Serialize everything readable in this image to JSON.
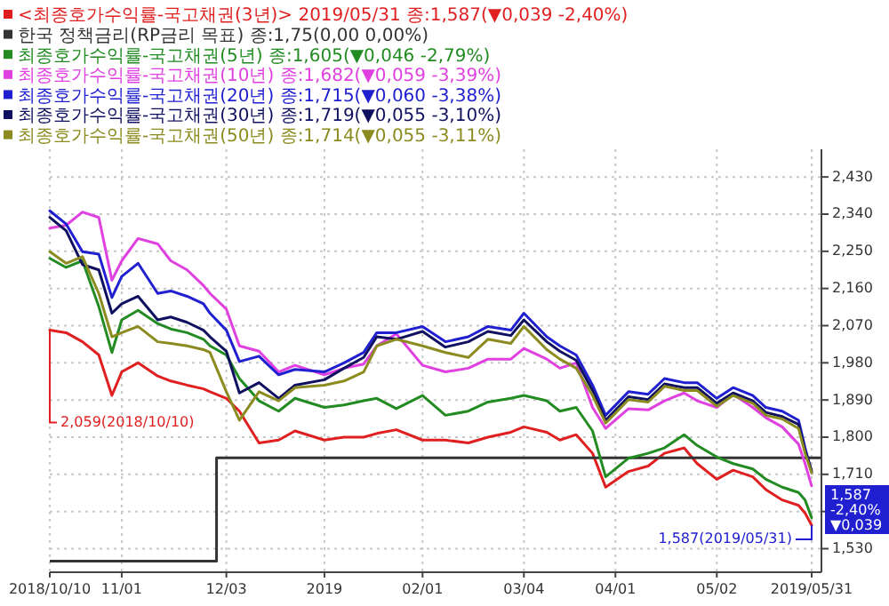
{
  "chart_data": {
    "type": "line",
    "x": [
      "2018-10-10",
      "2018-10-15",
      "2018-10-20",
      "2018-10-25",
      "2018-10-29",
      "2018-11-01",
      "2018-11-06",
      "2018-11-12",
      "2018-11-16",
      "2018-11-21",
      "2018-11-26",
      "2018-11-28",
      "2018-12-03",
      "2018-12-07",
      "2018-12-13",
      "2018-12-19",
      "2018-12-24",
      "2019-01-02",
      "2019-01-08",
      "2019-01-14",
      "2019-01-18",
      "2019-01-24",
      "2019-02-01",
      "2019-02-08",
      "2019-02-15",
      "2019-02-21",
      "2019-02-28",
      "2019-03-04",
      "2019-03-11",
      "2019-03-15",
      "2019-03-20",
      "2019-03-25",
      "2019-03-29",
      "2019-04-05",
      "2019-04-11",
      "2019-04-16",
      "2019-04-22",
      "2019-04-26",
      "2019-05-02",
      "2019-05-07",
      "2019-05-13",
      "2019-05-17",
      "2019-05-22",
      "2019-05-27",
      "2019-05-29",
      "2019-05-31"
    ],
    "series": [
      {
        "name": "<최종호가수익률-국고채권(3년)> 2019/05/31 종:1,587(▼0,039 -2,40%)",
        "color": "#e02020",
        "values": [
          2.059,
          2.053,
          2.031,
          1.999,
          1.901,
          1.958,
          1.98,
          1.948,
          1.936,
          1.926,
          1.917,
          1.91,
          1.894,
          1.863,
          1.786,
          1.793,
          1.815,
          1.793,
          1.8,
          1.8,
          1.809,
          1.818,
          1.793,
          1.793,
          1.786,
          1.8,
          1.812,
          1.825,
          1.812,
          1.793,
          1.806,
          1.761,
          1.679,
          1.717,
          1.73,
          1.761,
          1.774,
          1.736,
          1.698,
          1.72,
          1.704,
          1.673,
          1.648,
          1.635,
          1.616,
          1.587
        ]
      },
      {
        "name": "한국 정책금리(RP금리 목표) 종:1,75(0,00 0,00%)",
        "color": "#333333",
        "type": "step",
        "x": [
          "2018-10-10",
          "2018-11-30",
          "2019-06-03"
        ],
        "values": [
          1.5,
          1.75,
          1.75
        ]
      },
      {
        "name": "최종호가수익률-국고채권(5년) 종:1,605(▼0,046 -2,79%)",
        "color": "#228b22",
        "values": [
          2.233,
          2.211,
          2.227,
          2.116,
          2.005,
          2.084,
          2.107,
          2.075,
          2.062,
          2.053,
          2.037,
          2.021,
          1.999,
          1.942,
          1.888,
          1.863,
          1.894,
          1.872,
          1.878,
          1.888,
          1.894,
          1.869,
          1.901,
          1.853,
          1.863,
          1.885,
          1.894,
          1.901,
          1.888,
          1.863,
          1.872,
          1.815,
          1.704,
          1.749,
          1.761,
          1.774,
          1.806,
          1.78,
          1.752,
          1.736,
          1.723,
          1.698,
          1.679,
          1.666,
          1.648,
          1.605
        ]
      },
      {
        "name": "최종호가수익률-국고채권(10년) 종:1,682(▼0,059 -3,39%)",
        "color": "#e040e0",
        "values": [
          2.306,
          2.313,
          2.345,
          2.332,
          2.18,
          2.227,
          2.281,
          2.268,
          2.227,
          2.205,
          2.167,
          2.148,
          2.11,
          2.021,
          2.008,
          1.958,
          1.974,
          1.951,
          1.967,
          1.977,
          2.021,
          2.05,
          1.974,
          1.958,
          1.967,
          1.989,
          1.989,
          2.015,
          1.989,
          1.967,
          1.98,
          1.872,
          1.821,
          1.869,
          1.866,
          1.888,
          1.907,
          1.888,
          1.872,
          1.904,
          1.872,
          1.847,
          1.825,
          1.783,
          1.736,
          1.682
        ]
      },
      {
        "name": "최종호가수익률-국고채권(20년) 종:1,715(▼0,060 -3,38%)",
        "color": "#2020d0",
        "values": [
          2.348,
          2.316,
          2.249,
          2.243,
          2.138,
          2.189,
          2.221,
          2.148,
          2.154,
          2.141,
          2.123,
          2.1,
          2.059,
          1.983,
          1.996,
          1.951,
          1.964,
          1.958,
          1.98,
          2.005,
          2.053,
          2.053,
          2.068,
          2.031,
          2.043,
          2.068,
          2.059,
          2.1,
          2.043,
          2.021,
          1.999,
          1.926,
          1.853,
          1.91,
          1.904,
          1.942,
          1.932,
          1.932,
          1.894,
          1.92,
          1.901,
          1.872,
          1.863,
          1.841,
          1.774,
          1.715
        ]
      },
      {
        "name": "최종호가수익률-국고채권(30년) 종:1,719(▼0,055 -3,10%)",
        "color": "#101060",
        "values": [
          2.332,
          2.3,
          2.218,
          2.205,
          2.1,
          2.123,
          2.141,
          2.084,
          2.091,
          2.078,
          2.059,
          2.043,
          2.008,
          1.907,
          1.932,
          1.894,
          1.926,
          1.939,
          1.967,
          1.993,
          2.043,
          2.037,
          2.056,
          2.018,
          2.031,
          2.056,
          2.046,
          2.084,
          2.031,
          2.008,
          1.986,
          1.913,
          1.841,
          1.898,
          1.891,
          1.929,
          1.92,
          1.92,
          1.882,
          1.907,
          1.888,
          1.86,
          1.85,
          1.831,
          1.768,
          1.719
        ]
      },
      {
        "name": "최종호가수익률-국고채권(50년) 종:1,714(▼0,055 -3,11%)",
        "color": "#8b8b20",
        "values": [
          2.249,
          2.221,
          2.237,
          2.148,
          2.043,
          2.053,
          2.068,
          2.031,
          2.027,
          2.021,
          2.012,
          2.005,
          1.91,
          1.841,
          1.91,
          1.888,
          1.92,
          1.926,
          1.936,
          1.958,
          2.021,
          2.037,
          2.021,
          2.005,
          1.993,
          2.037,
          2.027,
          2.068,
          2.012,
          1.989,
          1.967,
          1.901,
          1.834,
          1.891,
          1.885,
          1.923,
          1.913,
          1.913,
          1.875,
          1.901,
          1.882,
          1.853,
          1.844,
          1.821,
          1.761,
          1.714
        ]
      }
    ],
    "xlim": [
      "2018-10-10",
      "2019-06-03"
    ],
    "ylim": [
      1.473,
      2.497
    ],
    "xticks": [
      {
        "value": "2018-10-10",
        "label": "2018/10/10"
      },
      {
        "value": "2018-11-01",
        "label": "11/01"
      },
      {
        "value": "2018-12-03",
        "label": "12/03"
      },
      {
        "value": "2019-01-02",
        "label": "2019"
      },
      {
        "value": "2019-02-01",
        "label": "02/01"
      },
      {
        "value": "2019-03-04",
        "label": "03/04"
      },
      {
        "value": "2019-04-01",
        "label": "04/01"
      },
      {
        "value": "2019-05-02",
        "label": "05/02"
      },
      {
        "value": "2019-05-31",
        "label": "2019/05/31"
      }
    ],
    "yticks": [
      {
        "value": 1.53,
        "label": "1,530"
      },
      {
        "value": 1.62,
        "label": null
      },
      {
        "value": 1.71,
        "label": "1,710"
      },
      {
        "value": 1.8,
        "label": "1,800"
      },
      {
        "value": 1.89,
        "label": "1,890"
      },
      {
        "value": 1.98,
        "label": "1,980"
      },
      {
        "value": 2.07,
        "label": "2,070"
      },
      {
        "value": 2.16,
        "label": "2,160"
      },
      {
        "value": 2.25,
        "label": "2,250"
      },
      {
        "value": 2.34,
        "label": "2,340"
      },
      {
        "value": 2.43,
        "label": "2,430"
      }
    ],
    "grid": true,
    "legend": "top left",
    "annotations": [
      {
        "text": "2,059(2018/10/10)",
        "x": "2018-10-10",
        "y": 2.059
      },
      {
        "text": "1,587(2019/05/31)",
        "x": "2019-05-31",
        "y": 1.587
      },
      {
        "text": "1,587\n-2,40%\n▼0,039",
        "x": "2019-05-31",
        "y": 1.587
      }
    ]
  }
}
